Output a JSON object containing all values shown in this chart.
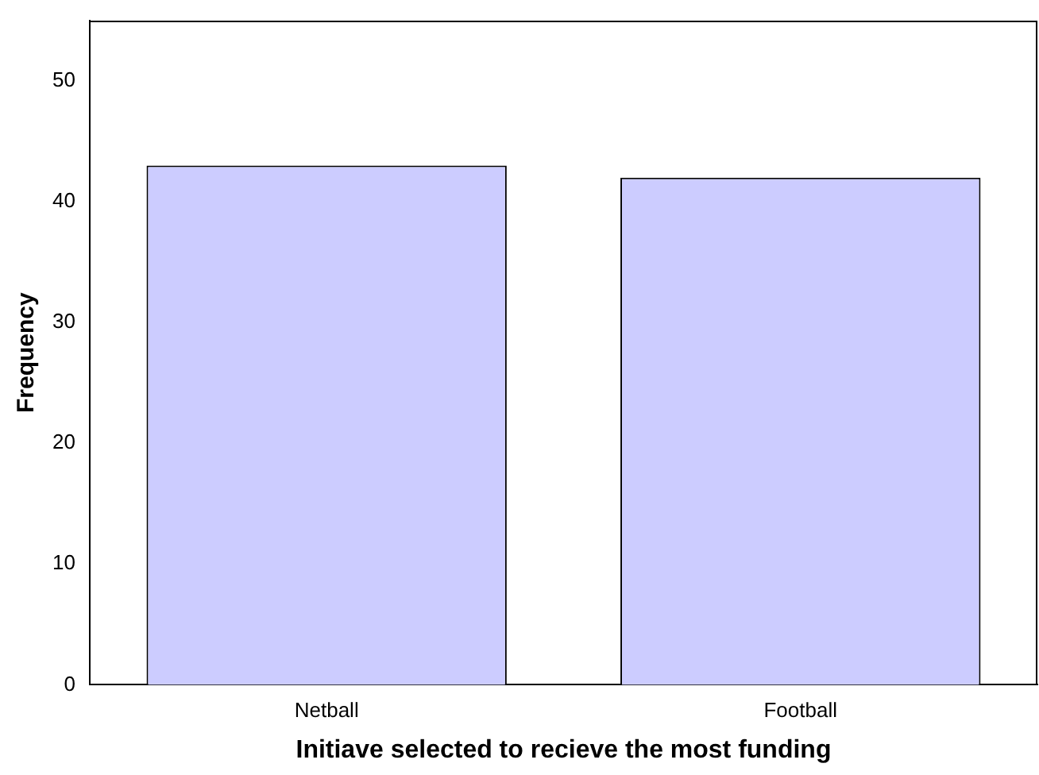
{
  "chart_data": {
    "type": "bar",
    "xlabel": "Initiave selected to recieve the most funding",
    "ylabel": "Frequency",
    "categories": [
      "Netball",
      "Football"
    ],
    "values": [
      43,
      42
    ],
    "color": "#ccccff",
    "ylim": [
      0,
      55
    ],
    "yticks": [
      0,
      10,
      20,
      30,
      40,
      50
    ],
    "grid": false,
    "legend": false
  }
}
